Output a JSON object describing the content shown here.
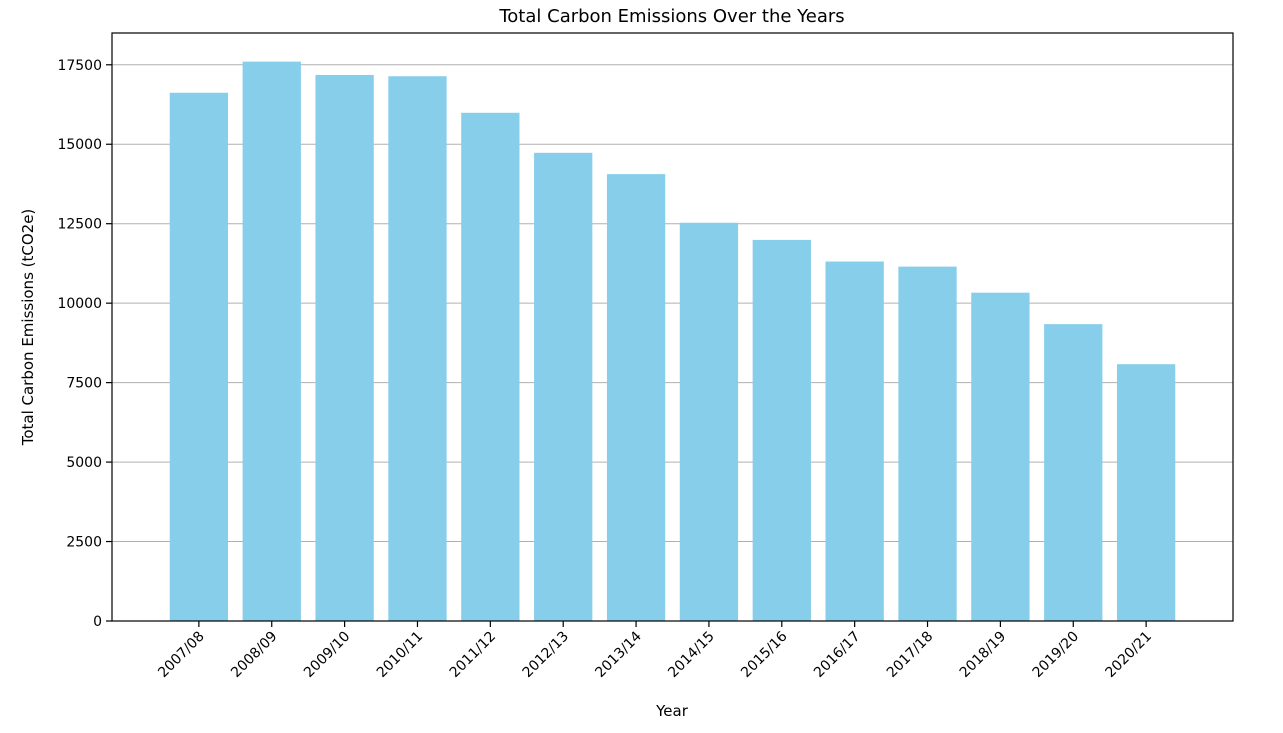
{
  "chart_data": {
    "type": "bar",
    "title": "Total Carbon Emissions Over the Years",
    "xlabel": "Year",
    "ylabel": "Total Carbon Emissions (tCO2e)",
    "categories": [
      "2007/08",
      "2008/09",
      "2009/10",
      "2010/11",
      "2011/12",
      "2012/13",
      "2013/14",
      "2014/15",
      "2015/16",
      "2016/17",
      "2017/18",
      "2018/19",
      "2019/20",
      "2020/21"
    ],
    "values": [
      16620,
      17600,
      17180,
      17140,
      15990,
      14730,
      14060,
      12530,
      11990,
      11310,
      11150,
      10330,
      9340,
      8080
    ],
    "ylim": [
      0,
      18500
    ],
    "yticks": [
      0,
      2500,
      5000,
      7500,
      10000,
      12500,
      15000,
      17500
    ],
    "ytick_labels": [
      "0",
      "2500",
      "5000",
      "7500",
      "10000",
      "12500",
      "15000",
      "17500"
    ],
    "grid": "y",
    "bar_color": "#87CEEB"
  }
}
